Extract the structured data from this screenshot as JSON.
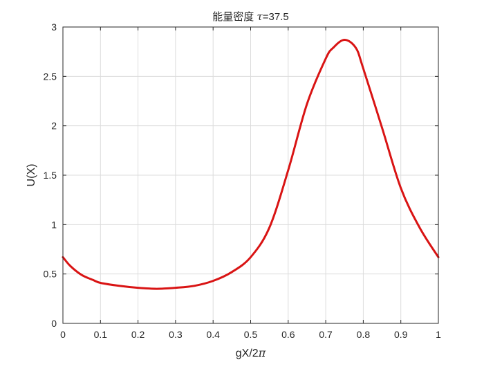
{
  "chart_data": {
    "type": "line",
    "title": "能量密度 τ=37.5",
    "title_main": "能量密度 ",
    "title_symbol": "τ",
    "title_value": "=37.5",
    "xlabel": "gX/2π",
    "xlabel_main": "gX/2",
    "xlabel_symbol": "π",
    "ylabel": "U(X)",
    "xlim": [
      0,
      1
    ],
    "ylim": [
      0,
      3
    ],
    "x_ticks": [
      0,
      0.1,
      0.2,
      0.3,
      0.4,
      0.5,
      0.6,
      0.7,
      0.8,
      0.9,
      1
    ],
    "x_tick_labels": [
      "0",
      "0.1",
      "0.2",
      "0.3",
      "0.4",
      "0.5",
      "0.6",
      "0.7",
      "0.8",
      "0.9",
      "1"
    ],
    "y_ticks": [
      0,
      0.5,
      1,
      1.5,
      2,
      2.5,
      3
    ],
    "y_tick_labels": [
      "0",
      "0.5",
      "1",
      "1.5",
      "2",
      "2.5",
      "3"
    ],
    "grid": true,
    "series": [
      {
        "color": "#d91414",
        "x": [
          0,
          0.02,
          0.05,
          0.08,
          0.1,
          0.15,
          0.2,
          0.25,
          0.3,
          0.35,
          0.4,
          0.45,
          0.5,
          0.55,
          0.6,
          0.65,
          0.7,
          0.72,
          0.75,
          0.78,
          0.8,
          0.85,
          0.9,
          0.95,
          1
        ],
        "y": [
          0.67,
          0.58,
          0.49,
          0.44,
          0.41,
          0.38,
          0.36,
          0.35,
          0.36,
          0.38,
          0.43,
          0.52,
          0.67,
          0.97,
          1.55,
          2.22,
          2.68,
          2.79,
          2.87,
          2.79,
          2.58,
          1.98,
          1.37,
          0.97,
          0.67
        ]
      }
    ]
  }
}
